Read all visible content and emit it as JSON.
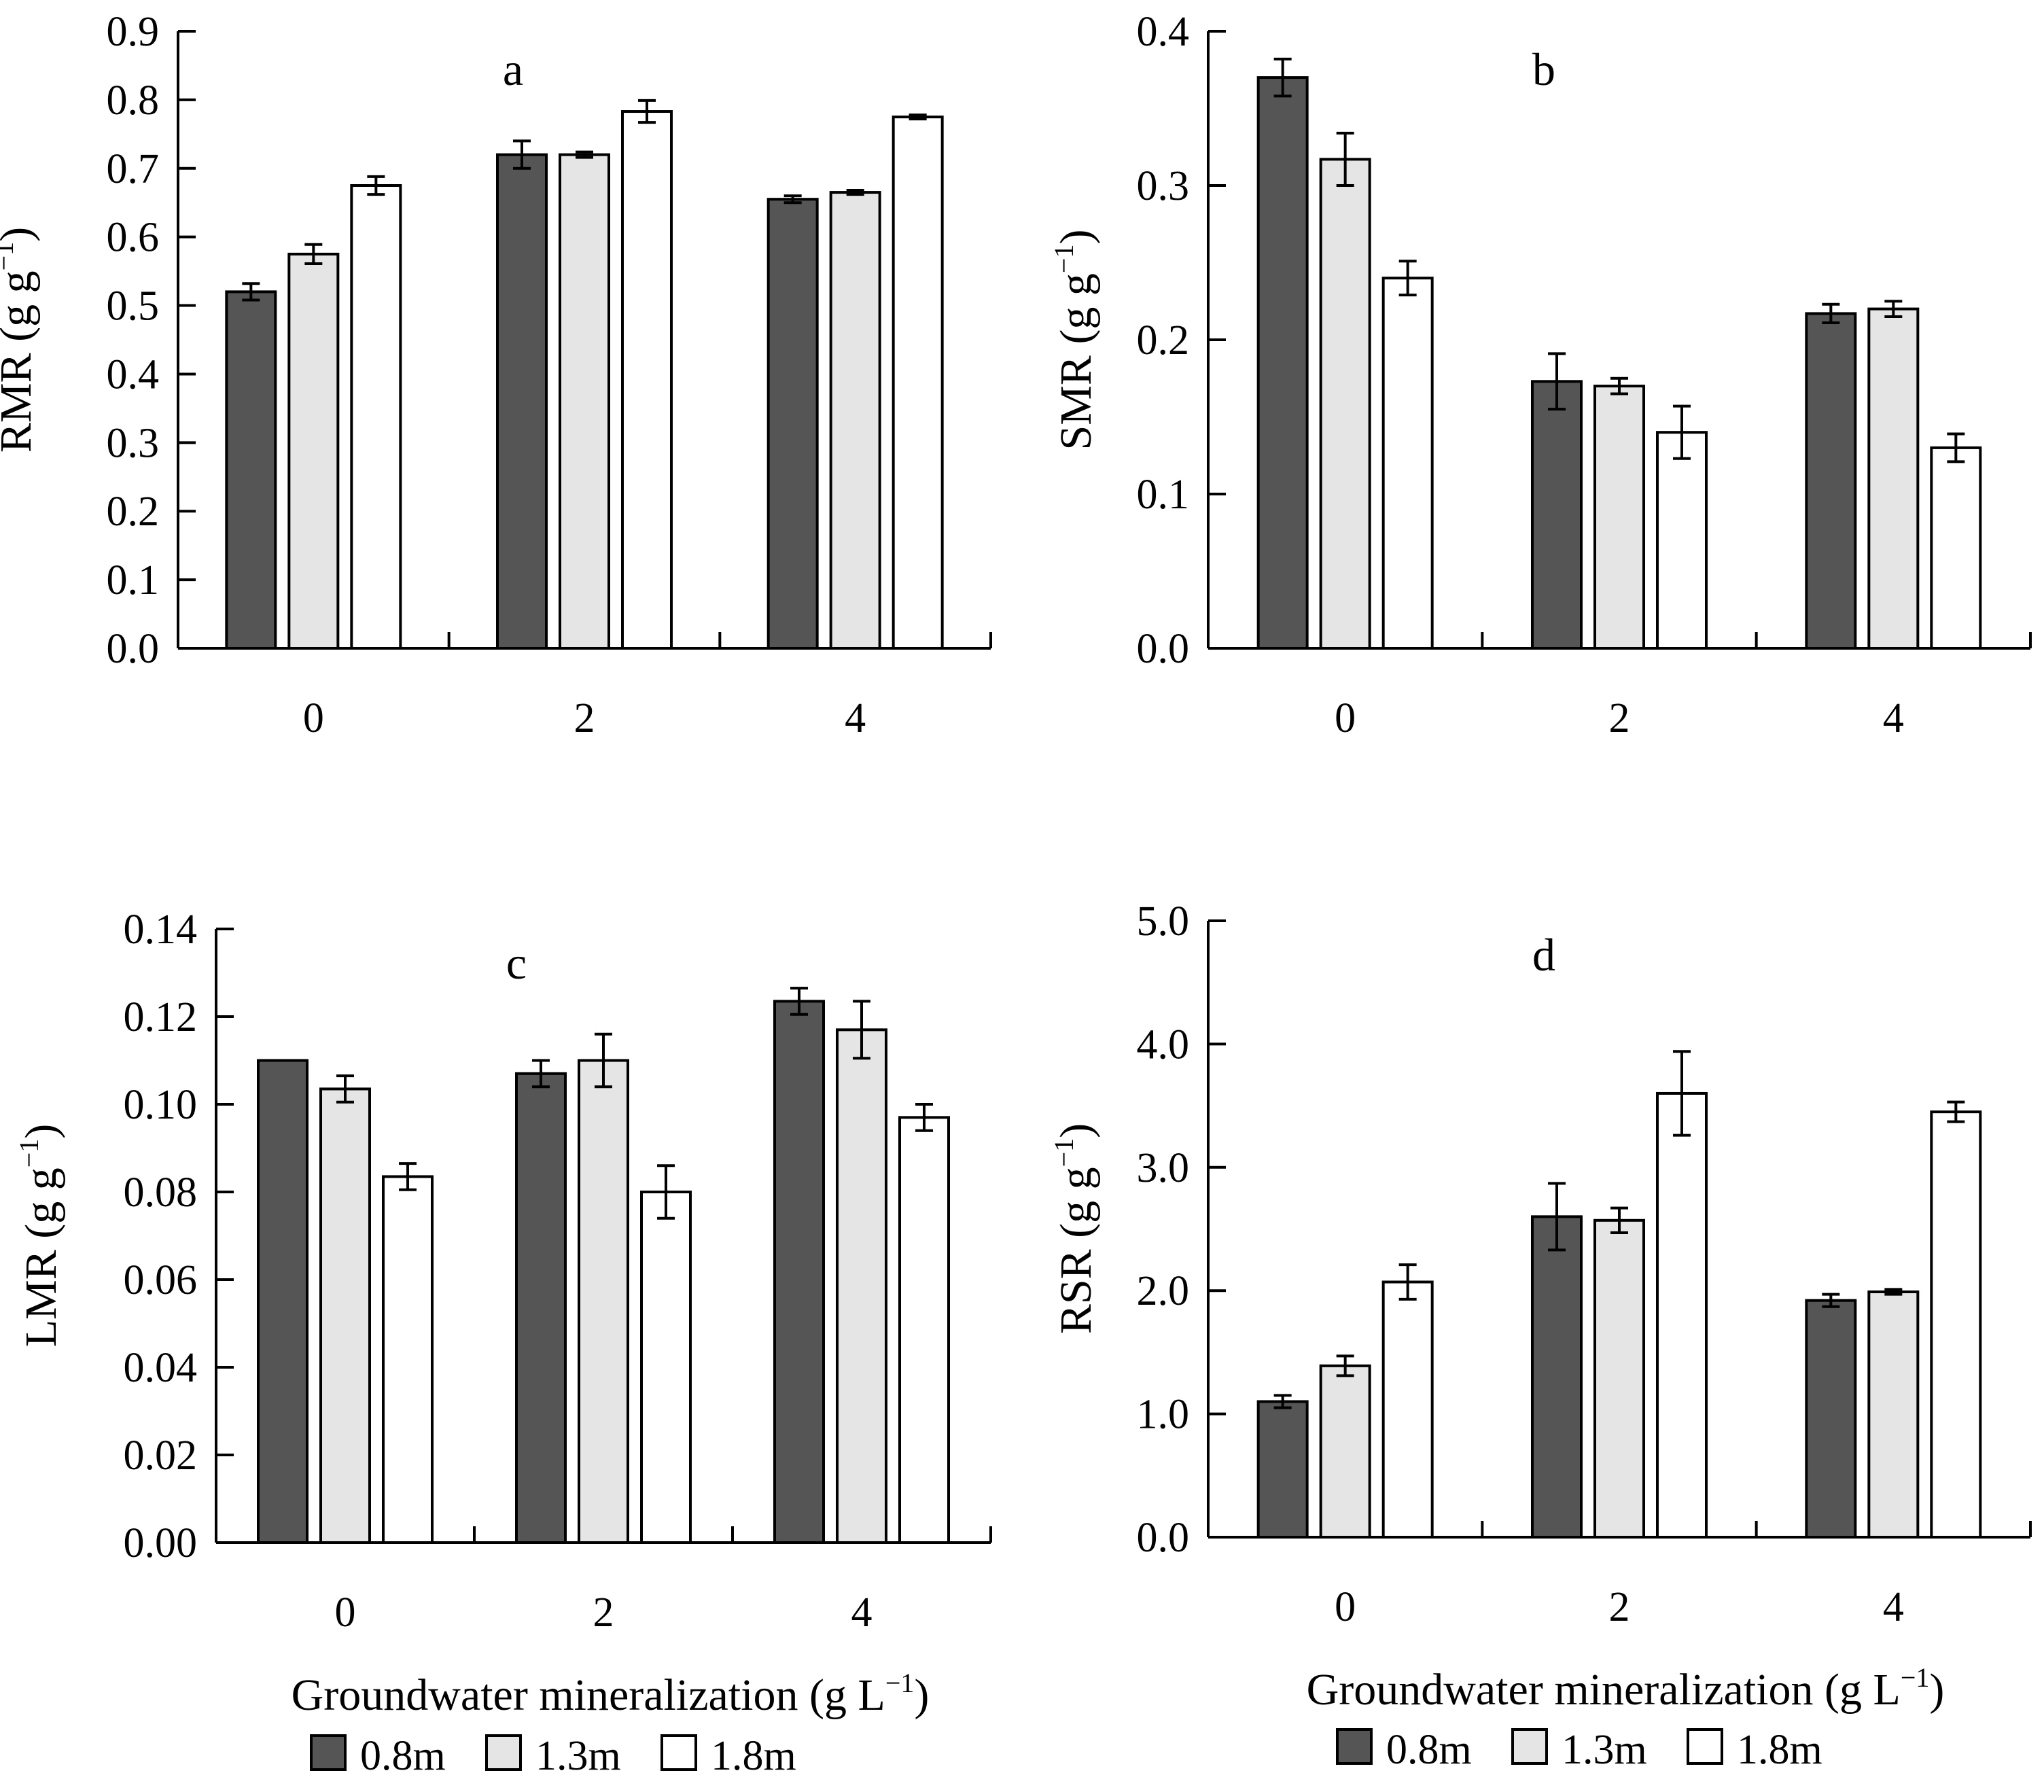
{
  "legend": {
    "series": [
      {
        "name": "0.8m",
        "color": "#555555"
      },
      {
        "name": "1.3m",
        "color": "#e5e5e5"
      },
      {
        "name": "1.8m",
        "color": "#ffffff"
      }
    ]
  },
  "chart_data": [
    {
      "type": "bar",
      "panel": "a",
      "ylabel": "RMR (g g⁻¹)",
      "ylabel_main": "RMR (g g",
      "ylabel_sup": "−1",
      "ylabel_close": ")",
      "xlabel": "",
      "categories": [
        "0",
        "2",
        "4"
      ],
      "ylim": [
        0,
        0.9
      ],
      "yticks": [
        "0.0",
        "0.1",
        "0.2",
        "0.3",
        "0.4",
        "0.5",
        "0.6",
        "0.7",
        "0.8",
        "0.9"
      ],
      "series": [
        {
          "name": "0.8m",
          "values": [
            0.52,
            0.72,
            0.655
          ],
          "errors": [
            0.012,
            0.02,
            0.005
          ]
        },
        {
          "name": "1.3m",
          "values": [
            0.575,
            0.72,
            0.665
          ],
          "errors": [
            0.014,
            0.004,
            0.003
          ]
        },
        {
          "name": "1.8m",
          "values": [
            0.675,
            0.783,
            0.775
          ],
          "errors": [
            0.013,
            0.016,
            0.003
          ]
        }
      ]
    },
    {
      "type": "bar",
      "panel": "b",
      "ylabel": "SMR (g g⁻¹)",
      "ylabel_main": "SMR (g g",
      "ylabel_sup": "−1",
      "ylabel_close": ")",
      "xlabel": "",
      "categories": [
        "0",
        "2",
        "4"
      ],
      "ylim": [
        0,
        0.4
      ],
      "yticks": [
        "0.0",
        "0.1",
        "0.2",
        "0.3",
        "0.4"
      ],
      "series": [
        {
          "name": "0.8m",
          "values": [
            0.37,
            0.173,
            0.217
          ],
          "errors": [
            0.012,
            0.018,
            0.006
          ]
        },
        {
          "name": "1.3m",
          "values": [
            0.317,
            0.17,
            0.22
          ],
          "errors": [
            0.017,
            0.005,
            0.005
          ]
        },
        {
          "name": "1.8m",
          "values": [
            0.24,
            0.14,
            0.13
          ],
          "errors": [
            0.011,
            0.017,
            0.009
          ]
        }
      ]
    },
    {
      "type": "bar",
      "panel": "c",
      "ylabel": "LMR (g g⁻¹)",
      "ylabel_main": "LMR (g g",
      "ylabel_sup": "−1",
      "ylabel_close": ")",
      "xlabel": "Groundwater mineralization (g L⁻¹)",
      "xlabel_main": "Groundwater mineralization (g L",
      "xlabel_sup": "−1",
      "xlabel_close": ")",
      "categories": [
        "0",
        "2",
        "4"
      ],
      "ylim": [
        0,
        0.14
      ],
      "yticks": [
        "0.00",
        "0.02",
        "0.04",
        "0.06",
        "0.08",
        "0.10",
        "0.12",
        "0.14"
      ],
      "series": [
        {
          "name": "0.8m",
          "values": [
            0.11,
            0.107,
            0.1235
          ],
          "errors": [
            0,
            0.003,
            0.003
          ]
        },
        {
          "name": "1.3m",
          "values": [
            0.1035,
            0.11,
            0.117
          ],
          "errors": [
            0.003,
            0.006,
            0.0065
          ]
        },
        {
          "name": "1.8m",
          "values": [
            0.0835,
            0.08,
            0.097
          ],
          "errors": [
            0.003,
            0.006,
            0.003
          ]
        }
      ]
    },
    {
      "type": "bar",
      "panel": "d",
      "ylabel": "RSR (g g⁻¹)",
      "ylabel_main": "RSR (g g",
      "ylabel_sup": "−1",
      "ylabel_close": ")",
      "xlabel": "Groundwater mineralization (g L⁻¹)",
      "xlabel_main": "Groundwater mineralization (g L",
      "xlabel_sup": "−1",
      "xlabel_close": ")",
      "categories": [
        "0",
        "2",
        "4"
      ],
      "ylim": [
        0,
        5.0
      ],
      "yticks": [
        "0.0",
        "1.0",
        "2.0",
        "3.0",
        "4.0",
        "5.0"
      ],
      "series": [
        {
          "name": "0.8m",
          "values": [
            1.1,
            2.6,
            1.92
          ],
          "errors": [
            0.05,
            0.27,
            0.05
          ]
        },
        {
          "name": "1.3m",
          "values": [
            1.39,
            2.57,
            1.99
          ],
          "errors": [
            0.08,
            0.1,
            0.02
          ]
        },
        {
          "name": "1.8m",
          "values": [
            2.07,
            3.6,
            3.45
          ],
          "errors": [
            0.14,
            0.34,
            0.08
          ]
        }
      ]
    }
  ]
}
